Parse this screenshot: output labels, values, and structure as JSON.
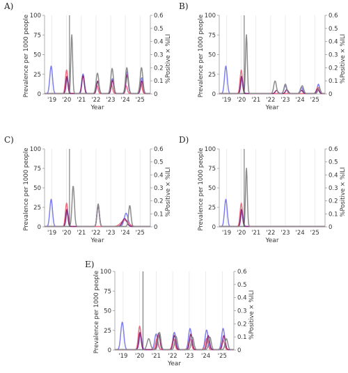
{
  "figure": {
    "colors": {
      "blue": "#7f7ff0",
      "red": "#ef6f83",
      "purple": "#8a2c78",
      "grey": "#8c8c8c",
      "vline": "#555555",
      "grid": "#e3e3e3",
      "axis": "#9a9a9a"
    }
  },
  "chart_data": [
    {
      "panel": "A)",
      "type": "line",
      "xlabel": "Year",
      "ylabel": "Prevalence per 1000 people",
      "ylabel_right": "%Positive × %ILI",
      "xticks": [
        "'19",
        "'20",
        "'21",
        "'22",
        "'23",
        "'24",
        "'25"
      ],
      "yticks_left": [
        "0",
        "25",
        "50",
        "75",
        "100"
      ],
      "yticks_right": [
        "0",
        "0.1",
        "0.2",
        "0.3",
        "0.4",
        "0.5",
        "0.6"
      ],
      "xlim": [
        2018.5,
        2025.7
      ],
      "ylim": [
        0,
        100
      ],
      "ylim_right": [
        0,
        0.6
      ],
      "vline_x": 2020.2,
      "series": [
        {
          "color": "blue",
          "peaks": [
            [
              2018.95,
              35,
              0.09
            ],
            [
              2020.05,
              20,
              0.08
            ],
            [
              2021.12,
              25,
              0.09
            ],
            [
              2022.12,
              15,
              0.09
            ],
            [
              2023.12,
              19,
              0.09
            ],
            [
              2024.12,
              28,
              0.09
            ],
            [
              2025.12,
              20,
              0.09
            ]
          ]
        },
        {
          "color": "red",
          "peaks": [
            [
              2020.0,
              30,
              0.08
            ],
            [
              2022.05,
              11,
              0.08
            ],
            [
              2023.05,
              11,
              0.08
            ],
            [
              2024.05,
              10,
              0.08
            ],
            [
              2025.05,
              14,
              0.08
            ]
          ]
        },
        {
          "color": "purple",
          "peaks": [
            [
              2020.02,
              22,
              0.07
            ],
            [
              2021.12,
              23,
              0.08
            ],
            [
              2022.12,
              16,
              0.08
            ],
            [
              2023.12,
              17,
              0.08
            ],
            [
              2024.12,
              24,
              0.08
            ],
            [
              2025.12,
              16,
              0.08
            ]
          ]
        },
        {
          "color": "grey",
          "peaks": [
            [
              2020.35,
              75,
              0.06
            ],
            [
              2022.1,
              26,
              0.09
            ],
            [
              2023.1,
              32,
              0.09
            ],
            [
              2024.1,
              33,
              0.09
            ],
            [
              2025.1,
              33,
              0.09
            ]
          ]
        }
      ]
    },
    {
      "panel": "B)",
      "type": "line",
      "xlabel": "Year",
      "ylabel": "Prevalence per 1000 people",
      "ylabel_right": "%Positive × %ILI",
      "xticks": [
        "'19",
        "'20",
        "'21",
        "'22",
        "'23",
        "'24",
        "'25"
      ],
      "yticks_left": [
        "0",
        "25",
        "50",
        "75",
        "100"
      ],
      "yticks_right": [
        "0",
        "0.1",
        "0.2",
        "0.3",
        "0.4",
        "0.5",
        "0.6"
      ],
      "xlim": [
        2018.5,
        2025.7
      ],
      "ylim": [
        0,
        100
      ],
      "ylim_right": [
        0,
        0.6
      ],
      "vline_x": 2020.2,
      "series": [
        {
          "color": "blue",
          "peaks": [
            [
              2018.95,
              35,
              0.09
            ],
            [
              2020.05,
              20,
              0.08
            ],
            [
              2023.0,
              10,
              0.09
            ],
            [
              2024.1,
              8,
              0.09
            ],
            [
              2025.25,
              12,
              0.08
            ]
          ]
        },
        {
          "color": "red",
          "peaks": [
            [
              2020.0,
              30,
              0.08
            ],
            [
              2025.2,
              8,
              0.08
            ]
          ]
        },
        {
          "color": "purple",
          "peaks": [
            [
              2020.02,
              22,
              0.07
            ],
            [
              2022.4,
              4,
              0.09
            ],
            [
              2023.1,
              5,
              0.09
            ],
            [
              2024.1,
              4,
              0.09
            ],
            [
              2025.2,
              6,
              0.09
            ]
          ]
        },
        {
          "color": "grey",
          "peaks": [
            [
              2020.35,
              75,
              0.06
            ],
            [
              2022.3,
              16,
              0.09
            ],
            [
              2023.0,
              12,
              0.09
            ],
            [
              2024.15,
              10,
              0.09
            ],
            [
              2025.3,
              8,
              0.08
            ]
          ]
        }
      ]
    },
    {
      "panel": "C)",
      "type": "line",
      "xlabel": "Year",
      "ylabel": "Prevalence per 1000 people",
      "ylabel_right": "%Positive × %ILI",
      "xticks": [
        "'19",
        "'20",
        "'21",
        "'22",
        "'23",
        "'24",
        "'25"
      ],
      "yticks_left": [
        "0",
        "25",
        "50",
        "75",
        "100"
      ],
      "yticks_right": [
        "0",
        "0.1",
        "0.2",
        "0.3",
        "0.4",
        "0.5",
        "0.6"
      ],
      "xlim": [
        2018.5,
        2025.7
      ],
      "ylim": [
        0,
        100
      ],
      "ylim_right": [
        0,
        0.6
      ],
      "vline_x": 2020.2,
      "series": [
        {
          "color": "blue",
          "peaks": [
            [
              2018.95,
              35,
              0.09
            ],
            [
              2020.05,
              20,
              0.08
            ],
            [
              2022.15,
              28,
              0.08
            ],
            [
              2024.05,
              17,
              0.13
            ]
          ]
        },
        {
          "color": "red",
          "peaks": [
            [
              2020.0,
              30,
              0.08
            ],
            [
              2023.95,
              8,
              0.25
            ]
          ]
        },
        {
          "color": "purple",
          "peaks": [
            [
              2020.02,
              22,
              0.07
            ],
            [
              2022.15,
              27,
              0.08
            ],
            [
              2023.95,
              10,
              0.15
            ]
          ]
        },
        {
          "color": "grey",
          "peaks": [
            [
              2020.45,
              52,
              0.08
            ],
            [
              2022.15,
              29,
              0.08
            ],
            [
              2024.3,
              27,
              0.08
            ]
          ]
        }
      ]
    },
    {
      "panel": "D)",
      "type": "line",
      "xlabel": "Year",
      "ylabel": "Prevalence per 1000 people",
      "ylabel_right": "%Positive × %ILI",
      "xticks": [
        "'19",
        "'20",
        "'21",
        "'22",
        "'23",
        "'24",
        "'25"
      ],
      "yticks_left": [
        "0",
        "25",
        "50",
        "75",
        "100"
      ],
      "yticks_right": [
        "0",
        "0.1",
        "0.2",
        "0.3",
        "0.4",
        "0.5",
        "0.6"
      ],
      "xlim": [
        2018.5,
        2025.7
      ],
      "ylim": [
        0,
        100
      ],
      "ylim_right": [
        0,
        0.6
      ],
      "vline_x": 2020.2,
      "series": [
        {
          "color": "blue",
          "peaks": [
            [
              2018.95,
              35,
              0.09
            ],
            [
              2020.05,
              20,
              0.08
            ]
          ]
        },
        {
          "color": "red",
          "peaks": [
            [
              2020.0,
              30,
              0.08
            ]
          ]
        },
        {
          "color": "purple",
          "peaks": [
            [
              2020.02,
              22,
              0.07
            ]
          ]
        },
        {
          "color": "grey",
          "peaks": [
            [
              2020.35,
              75,
              0.06
            ]
          ]
        }
      ]
    },
    {
      "panel": "E)",
      "type": "line",
      "xlabel": "Year",
      "ylabel": "Prevalence per 1000 people",
      "ylabel_right": "%Positive × %ILI",
      "xticks": [
        "'19",
        "'20",
        "'21",
        "'22",
        "'23",
        "'24",
        "'25"
      ],
      "yticks_left": [
        "0",
        "25",
        "50",
        "75",
        "100"
      ],
      "yticks_right": [
        "0",
        "0.1",
        "0.2",
        "0.3",
        "0.4",
        "0.5",
        "0.6"
      ],
      "xlim": [
        2018.5,
        2025.7
      ],
      "ylim": [
        0,
        100
      ],
      "ylim_right": [
        0,
        0.6
      ],
      "vline_x": 2020.2,
      "series": [
        {
          "color": "blue",
          "peaks": [
            [
              2018.95,
              35,
              0.09
            ],
            [
              2020.05,
              20,
              0.08
            ],
            [
              2021.0,
              20,
              0.09
            ],
            [
              2022.1,
              22,
              0.09
            ],
            [
              2023.05,
              27,
              0.09
            ],
            [
              2024.05,
              25,
              0.09
            ],
            [
              2025.05,
              27,
              0.09
            ]
          ]
        },
        {
          "color": "red",
          "peaks": [
            [
              2020.0,
              30,
              0.08
            ],
            [
              2021.05,
              14,
              0.08
            ],
            [
              2022.05,
              14,
              0.08
            ],
            [
              2023.05,
              14,
              0.08
            ],
            [
              2024.05,
              14,
              0.08
            ],
            [
              2025.05,
              12,
              0.08
            ]
          ]
        },
        {
          "color": "purple",
          "peaks": [
            [
              2020.02,
              22,
              0.07
            ],
            [
              2021.15,
              21,
              0.08
            ],
            [
              2022.1,
              18,
              0.08
            ],
            [
              2023.1,
              20,
              0.08
            ],
            [
              2024.15,
              18,
              0.08
            ],
            [
              2025.1,
              18,
              0.08
            ]
          ]
        },
        {
          "color": "grey",
          "peaks": [
            [
              2020.55,
              14,
              0.1
            ],
            [
              2021.2,
              22,
              0.08
            ],
            [
              2022.2,
              17,
              0.08
            ],
            [
              2023.2,
              16,
              0.08
            ],
            [
              2024.25,
              16,
              0.08
            ],
            [
              2025.25,
              14,
              0.08
            ]
          ]
        }
      ]
    }
  ]
}
